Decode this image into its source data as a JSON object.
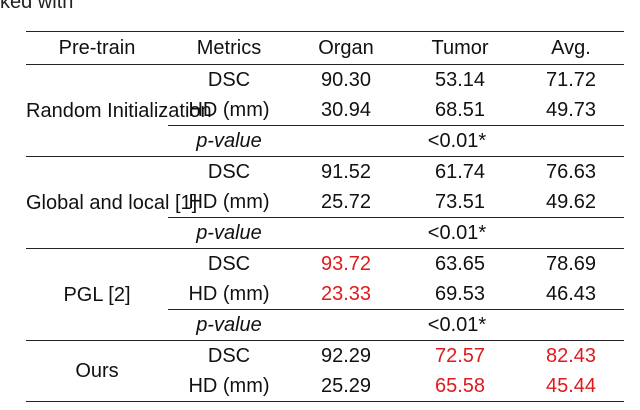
{
  "caption_fragment": "ked with ",
  "header": [
    "Pre-train",
    "Metrics",
    "Organ",
    "Tumor",
    "Avg."
  ],
  "groups": [
    {
      "name": "Random Initialization",
      "rows": [
        {
          "metric": "DSC",
          "organ": "90.30",
          "tumor": "53.14",
          "avg": "71.72"
        },
        {
          "metric": "HD (mm)",
          "organ": "30.94",
          "tumor": "68.51",
          "avg": "49.73"
        }
      ],
      "pvalue_label": "p-value",
      "pvalue": "<0.01*"
    },
    {
      "name": "Global and local [1]",
      "rows": [
        {
          "metric": "DSC",
          "organ": "91.52",
          "tumor": "61.74",
          "avg": "76.63"
        },
        {
          "metric": "HD (mm)",
          "organ": "25.72",
          "tumor": "73.51",
          "avg": "49.62"
        }
      ],
      "pvalue_label": "p-value",
      "pvalue": "<0.01*"
    },
    {
      "name": "PGL [2]",
      "rows": [
        {
          "metric": "DSC",
          "organ": "93.72",
          "tumor": "63.65",
          "avg": "78.69"
        },
        {
          "metric": "HD (mm)",
          "organ": "23.33",
          "tumor": "69.53",
          "avg": "46.43"
        }
      ],
      "pvalue_label": "p-value",
      "pvalue": "<0.01*"
    },
    {
      "name": "Ours",
      "rows": [
        {
          "metric": "DSC",
          "organ": "92.29",
          "tumor": "72.57",
          "avg": "82.43"
        },
        {
          "metric": "HD (mm)",
          "organ": "25.29",
          "tumor": "65.58",
          "avg": "45.44"
        }
      ]
    }
  ],
  "highlight_color": "#e0191c"
}
